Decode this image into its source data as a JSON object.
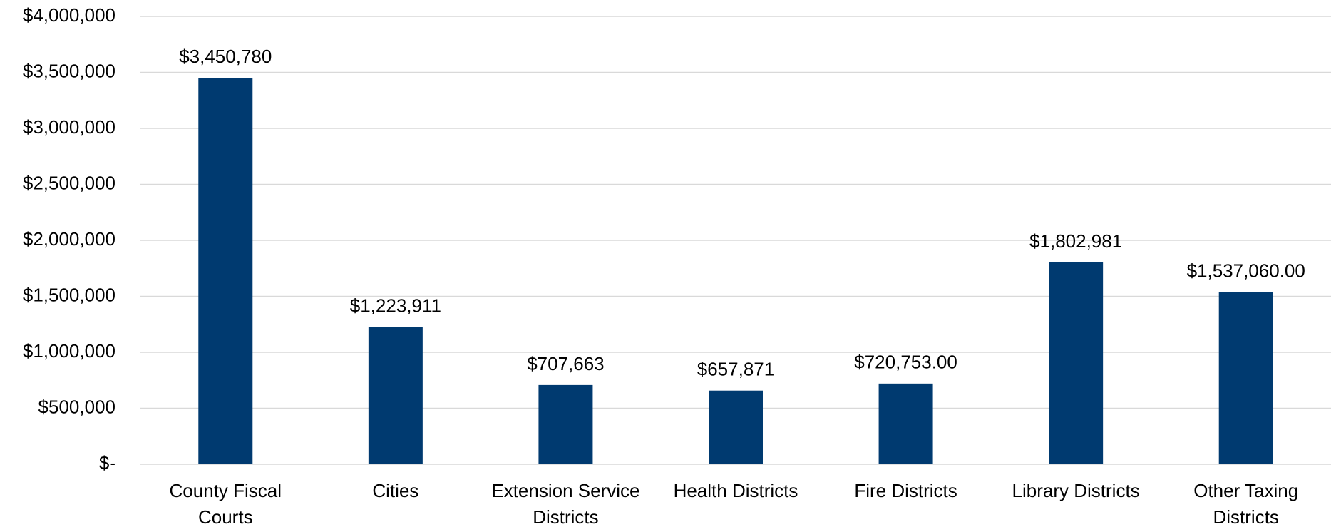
{
  "chart_data": {
    "type": "bar",
    "categories": [
      "County Fiscal Courts",
      "Cities",
      "Extension Service Districts",
      "Health Districts",
      "Fire Districts",
      "Library Districts",
      "Other Taxing Districts"
    ],
    "values": [
      3450780,
      1223911,
      707663,
      657871,
      720753,
      1802981,
      1537060
    ],
    "value_labels": [
      "$3,450,780",
      "$1,223,911",
      "$707,663",
      "$657,871",
      "$720,753.00",
      "$1,802,981",
      "$1,537,060.00"
    ],
    "color": "#003a70",
    "ylim": [
      0,
      4000000
    ],
    "yticks": [
      {
        "value": 0,
        "label": "$-"
      },
      {
        "value": 500000,
        "label": "$500,000"
      },
      {
        "value": 1000000,
        "label": "$1,000,000"
      },
      {
        "value": 1500000,
        "label": "$1,500,000"
      },
      {
        "value": 2000000,
        "label": "$2,000,000"
      },
      {
        "value": 2500000,
        "label": "$2,500,000"
      },
      {
        "value": 3000000,
        "label": "$3,000,000"
      },
      {
        "value": 3500000,
        "label": "$3,500,000"
      },
      {
        "value": 4000000,
        "label": "$4,000,000"
      }
    ],
    "grid": true
  }
}
